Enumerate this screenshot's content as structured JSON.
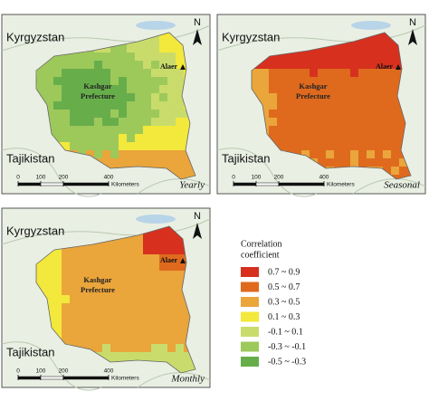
{
  "map_labels": {
    "north": "N",
    "country_top": "Kyrgyzstan",
    "country_bottom": "Tajikistan",
    "region": [
      "Kashgar",
      "Prefecture"
    ],
    "city": "Alaer",
    "scale_ticks": [
      0,
      100,
      200,
      400
    ],
    "scale_unit": "Kilometers"
  },
  "panels": [
    {
      "label": "Yearly"
    },
    {
      "label": "Seasonal"
    },
    {
      "label": "Monthly"
    }
  ],
  "legend": {
    "title": [
      "Correlation",
      "coefficient"
    ],
    "items": [
      {
        "label": "0.7 ~ 0.9",
        "color": "#d7301f"
      },
      {
        "label": "0.5 ~ 0.7",
        "color": "#df6a1e"
      },
      {
        "label": "0.3 ~ 0.5",
        "color": "#eaa53b"
      },
      {
        "label": "0.1 ~ 0.3",
        "color": "#f3e83c"
      },
      {
        "label": "-0.1 ~ 0.1",
        "color": "#c9dc6b"
      },
      {
        "label": "-0.3 ~ -0.1",
        "color": "#9dc95a"
      },
      {
        "label": "-0.5 ~ -0.3",
        "color": "#67ae4b"
      }
    ]
  }
}
